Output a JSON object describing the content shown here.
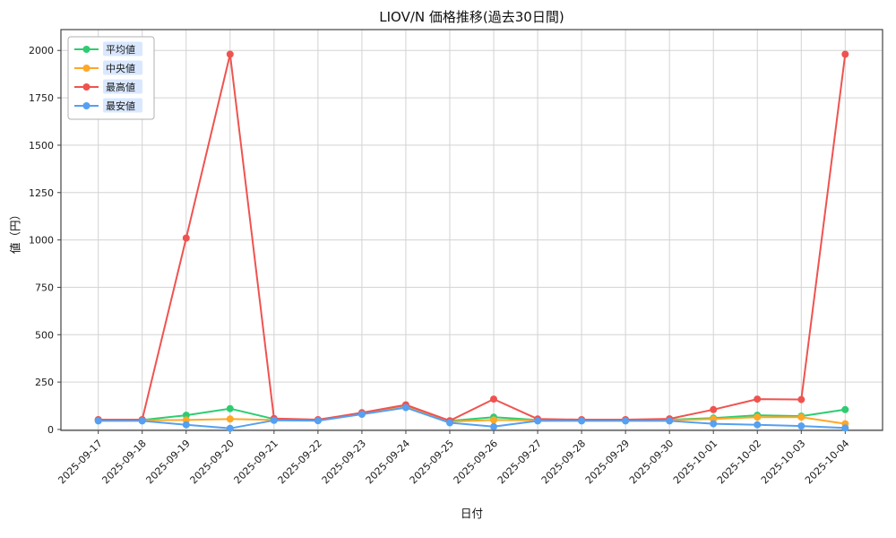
{
  "chart_data": {
    "type": "line",
    "title": "LIOV/N 価格推移(過去30日間)",
    "xlabel": "日付",
    "ylabel": "値（円）",
    "categories": [
      "2025-09-17",
      "2025-09-18",
      "2025-09-19",
      "2025-09-20",
      "2025-09-21",
      "2025-09-22",
      "2025-09-23",
      "2025-09-24",
      "2025-09-25",
      "2025-09-26",
      "2025-09-27",
      "2025-09-28",
      "2025-09-29",
      "2025-09-30",
      "2025-10-01",
      "2025-10-02",
      "2025-10-03",
      "2025-10-04"
    ],
    "series": [
      {
        "name": "平均値",
        "color": "#2ecc71",
        "values": [
          50,
          50,
          75,
          110,
          55,
          50,
          85,
          120,
          45,
          65,
          50,
          50,
          50,
          52,
          60,
          75,
          70,
          105
        ]
      },
      {
        "name": "中央値",
        "color": "#ffa726",
        "values": [
          48,
          48,
          50,
          55,
          50,
          48,
          84,
          118,
          42,
          50,
          48,
          48,
          48,
          49,
          55,
          65,
          65,
          30
        ]
      },
      {
        "name": "最高値",
        "color": "#ef5350",
        "values": [
          52,
          52,
          1010,
          1980,
          58,
          52,
          88,
          130,
          46,
          160,
          55,
          52,
          52,
          56,
          105,
          160,
          158,
          1980
        ]
      },
      {
        "name": "最安値",
        "color": "#55a0f0",
        "values": [
          45,
          45,
          25,
          6,
          48,
          46,
          80,
          115,
          35,
          15,
          45,
          45,
          45,
          45,
          30,
          25,
          18,
          8
        ]
      }
    ],
    "yticks": [
      0,
      250,
      500,
      750,
      1000,
      1250,
      1500,
      1750,
      2000
    ],
    "ylim": [
      -5,
      2110
    ],
    "grid": true,
    "legend_position": "upper-left",
    "legend_label_bg": "#d9e8ff",
    "grid_color": "#d3d3d3",
    "axis_color": "#444444"
  }
}
